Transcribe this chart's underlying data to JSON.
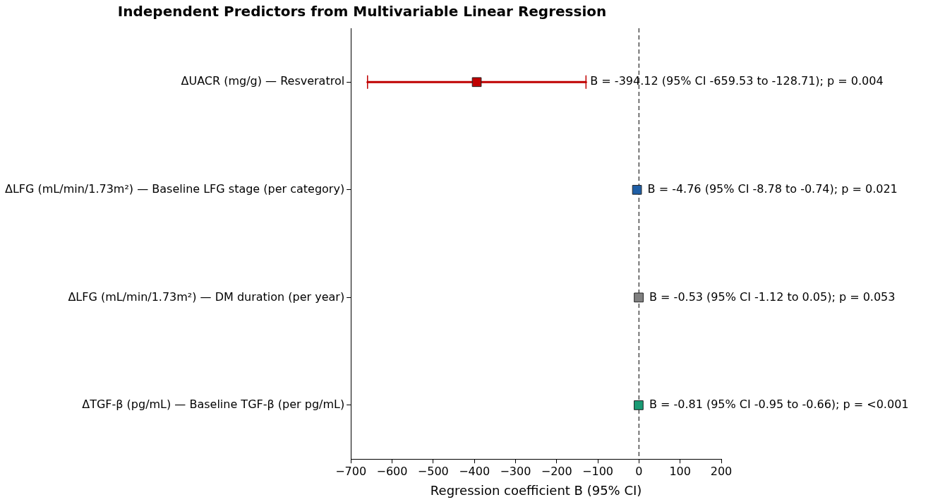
{
  "chart_data": {
    "type": "scatter",
    "orientation": "horizontal",
    "title": "Independent Predictors from Multivariable Linear Regression",
    "xlabel": "Regression coefficient B (95% CI)",
    "categories": [
      "ΔUACR (mg/g) — Resveratrol",
      "ΔLFG (mL/min/1.73m²) — Baseline LFG stage (per category)",
      "ΔLFG (mL/min/1.73m²) — DM duration (per year)",
      "ΔTGF-β (pg/mL) — Baseline TGF-β (per pg/mL)"
    ],
    "values": [
      -394.12,
      -4.76,
      -0.53,
      -0.81
    ],
    "errors": [
      [
        -659.53,
        -128.71
      ],
      null,
      null,
      null
    ],
    "colors": [
      "#c00000",
      "#1f5fa6",
      "#808080",
      "#1a9b74"
    ],
    "annotations": [
      {
        "text": "B = -394.12 (95% CI -659.53 to -128.71); p = 0.004",
        "x": -128.71,
        "y": "ΔUACR (mg/g) — Resveratrol"
      }
    ],
    "value_labels": [
      null,
      "B = -4.76 (95% CI -8.78 to -0.74); p = 0.021",
      "B = -0.53 (95% CI -1.12 to 0.05); p = 0.053",
      "B = -0.81 (95% CI -0.95 to -0.66); p = <0.001"
    ],
    "xlim": [
      -700,
      200
    ],
    "xticks": [
      -700,
      -600,
      -500,
      -400,
      -300,
      -200,
      -100,
      0,
      100,
      200
    ],
    "ref_lines": [
      {
        "axis": "x",
        "value": 0,
        "color": "#333333",
        "line_style": "dashed"
      }
    ],
    "marker": "square",
    "grid": false,
    "legend": false
  }
}
